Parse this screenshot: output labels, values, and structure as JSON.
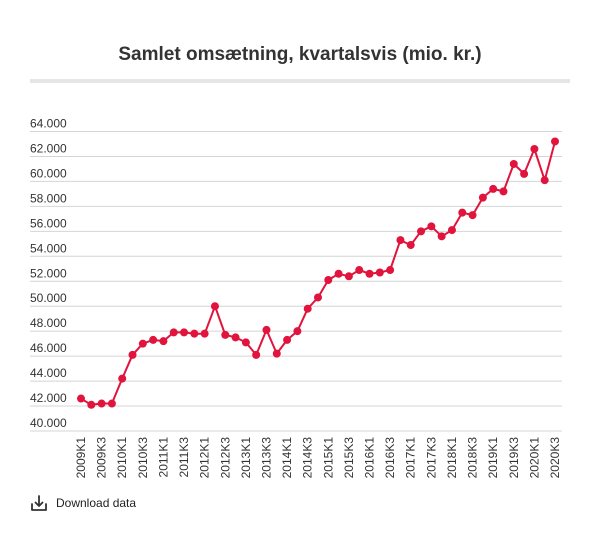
{
  "chart_data": {
    "type": "line",
    "title": "Samlet omsætning, kvartalsvis (mio. kr.)",
    "xlabel": "",
    "ylabel": "",
    "ylim": [
      40000,
      64000
    ],
    "yticks": [
      40000,
      42000,
      44000,
      46000,
      48000,
      50000,
      52000,
      54000,
      56000,
      58000,
      60000,
      62000,
      64000
    ],
    "ytick_labels": [
      "40.000",
      "42.000",
      "44.000",
      "46.000",
      "48.000",
      "50.000",
      "52.000",
      "54.000",
      "56.000",
      "58.000",
      "60.000",
      "62.000",
      "64.000"
    ],
    "grid": true,
    "categories": [
      "2009K1",
      "2009K2",
      "2009K3",
      "2009K4",
      "2010K1",
      "2010K2",
      "2010K3",
      "2010K4",
      "2011K1",
      "2011K2",
      "2011K3",
      "2011K4",
      "2012K1",
      "2012K2",
      "2012K3",
      "2012K4",
      "2013K1",
      "2013K2",
      "2013K3",
      "2013K4",
      "2014K1",
      "2014K2",
      "2014K3",
      "2014K4",
      "2015K1",
      "2015K2",
      "2015K3",
      "2015K4",
      "2016K1",
      "2016K2",
      "2016K3",
      "2016K4",
      "2017K1",
      "2017K2",
      "2017K3",
      "2017K4",
      "2018K1",
      "2018K2",
      "2018K3",
      "2018K4",
      "2019K1",
      "2019K2",
      "2019K3",
      "2019K4",
      "2020K1",
      "2020K2",
      "2020K3"
    ],
    "visible_xtick_labels": [
      "2009K1",
      "2009K3",
      "2010K1",
      "2010K3",
      "2011K1",
      "2011K3",
      "2012K1",
      "2012K3",
      "2013K1",
      "2013K3",
      "2014K1",
      "2014K3",
      "2015K1",
      "2015K3",
      "2016K1",
      "2016K3",
      "2017K1",
      "2017K3",
      "2018K1",
      "2018K3",
      "2019K1",
      "2019K3",
      "2020K1",
      "2020K3"
    ],
    "series": [
      {
        "color": "#e0143c",
        "values": [
          42600,
          42100,
          42200,
          42200,
          44200,
          46100,
          47000,
          47300,
          47200,
          47900,
          47900,
          47800,
          47800,
          50000,
          47700,
          47500,
          47100,
          46100,
          48100,
          46200,
          47300,
          48000,
          49800,
          50700,
          52100,
          52600,
          52400,
          52900,
          52600,
          52700,
          52900,
          55300,
          54900,
          56000,
          56400,
          55600,
          56100,
          57500,
          57300,
          58700,
          59400,
          59200,
          61400,
          60600,
          62600,
          60100,
          63200
        ]
      }
    ]
  },
  "footer": {
    "download_label": "Download data",
    "download_icon": "download-icon"
  },
  "colors": {
    "line": "#e0143c",
    "grid": "#d4d4d4",
    "rule": "#e6e6e6"
  }
}
